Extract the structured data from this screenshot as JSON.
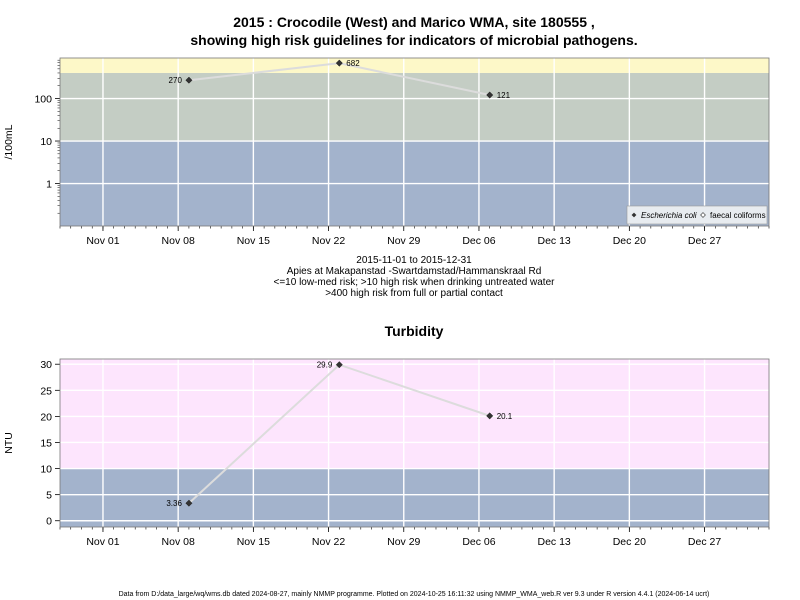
{
  "title_line1": "2015 : Crocodile (West) and Marico WMA, site 180555 ,",
  "title_line2": "showing high risk guidelines for indicators of microbial pathogens.",
  "subtitle_lines": [
    "2015-11-01 to 2015-12-31",
    "Apies at Makapanstad -Swartdamstad/Hammanskraal Rd",
    "<=10 low-med risk; >10 high risk when drinking untreated water",
    ">400 high risk from full or partial contact"
  ],
  "footer": "Data from D:/data_large/wq/wms.db dated 2024-08-27, mainly NMMP programme. Plotted on 2024-10-25 16:11:32 using NMMP_WMA_web.R ver 9.3 under R version 4.4.1 (2024-06-14 ucrt)",
  "colors": {
    "band_low": "#a3b3cc",
    "band_mid": "#c4cdc4",
    "band_high": "#fdf8c8",
    "turb_high": "#fde5fd",
    "grid": "#ffffff",
    "line": "#dcdcdc",
    "marker": "#333333"
  },
  "chart_data": [
    {
      "type": "line",
      "ylabel": "/100mL",
      "yscale": "log",
      "x_range": [
        "2015-10-28",
        "2016-01-02"
      ],
      "y_range": [
        0.1,
        900
      ],
      "x_ticks": [
        {
          "date": "2015-11-01",
          "label": "Nov 01"
        },
        {
          "date": "2015-11-08",
          "label": "Nov 08"
        },
        {
          "date": "2015-11-15",
          "label": "Nov 15"
        },
        {
          "date": "2015-11-22",
          "label": "Nov 22"
        },
        {
          "date": "2015-11-29",
          "label": "Nov 29"
        },
        {
          "date": "2015-12-06",
          "label": "Dec 06"
        },
        {
          "date": "2015-12-13",
          "label": "Dec 13"
        },
        {
          "date": "2015-12-20",
          "label": "Dec 20"
        },
        {
          "date": "2015-12-27",
          "label": "Dec 27"
        }
      ],
      "y_ticks": [
        {
          "value": 1,
          "label": "1"
        },
        {
          "value": 10,
          "label": "10"
        },
        {
          "value": 100,
          "label": "100"
        }
      ],
      "bands": [
        {
          "from": 0.1,
          "to": 10,
          "color": "#a3b3cc"
        },
        {
          "from": 10,
          "to": 400,
          "color": "#c4cdc4"
        },
        {
          "from": 400,
          "to": 900,
          "color": "#fdf8c8"
        }
      ],
      "series": [
        {
          "name": "Escherichia coli",
          "marker": "filled-diamond",
          "points": [
            {
              "x": "2015-11-09",
              "y": 270,
              "label": "270",
              "label_side": "left"
            },
            {
              "x": "2015-11-23",
              "y": 682,
              "label": "682",
              "label_side": "right"
            },
            {
              "x": "2015-12-07",
              "y": 121,
              "label": "121",
              "label_side": "right"
            }
          ]
        },
        {
          "name": "faecal coliforms",
          "marker": "open-diamond",
          "points": []
        }
      ],
      "legend_position": "bottom-right"
    },
    {
      "type": "line",
      "title": "Turbidity",
      "ylabel": "NTU",
      "yscale": "linear",
      "x_range": [
        "2015-10-28",
        "2016-01-02"
      ],
      "y_range": [
        -1.2,
        31
      ],
      "x_ticks": [
        {
          "date": "2015-11-01",
          "label": "Nov 01"
        },
        {
          "date": "2015-11-08",
          "label": "Nov 08"
        },
        {
          "date": "2015-11-15",
          "label": "Nov 15"
        },
        {
          "date": "2015-11-22",
          "label": "Nov 22"
        },
        {
          "date": "2015-11-29",
          "label": "Nov 29"
        },
        {
          "date": "2015-12-06",
          "label": "Dec 06"
        },
        {
          "date": "2015-12-13",
          "label": "Dec 13"
        },
        {
          "date": "2015-12-20",
          "label": "Dec 20"
        },
        {
          "date": "2015-12-27",
          "label": "Dec 27"
        }
      ],
      "y_ticks": [
        {
          "value": 0,
          "label": "0"
        },
        {
          "value": 5,
          "label": "5"
        },
        {
          "value": 10,
          "label": "10"
        },
        {
          "value": 15,
          "label": "15"
        },
        {
          "value": 20,
          "label": "20"
        },
        {
          "value": 25,
          "label": "25"
        },
        {
          "value": 30,
          "label": "30"
        }
      ],
      "bands": [
        {
          "from": -1.2,
          "to": 10,
          "color": "#a3b3cc"
        },
        {
          "from": 10,
          "to": 31,
          "color": "#fde5fd"
        }
      ],
      "series": [
        {
          "name": "Turbidity",
          "marker": "filled-diamond",
          "points": [
            {
              "x": "2015-11-09",
              "y": 3.36,
              "label": "3.36",
              "label_side": "left"
            },
            {
              "x": "2015-11-23",
              "y": 29.9,
              "label": "29.9",
              "label_side": "left"
            },
            {
              "x": "2015-12-07",
              "y": 20.1,
              "label": "20.1",
              "label_side": "right"
            }
          ]
        }
      ]
    }
  ]
}
